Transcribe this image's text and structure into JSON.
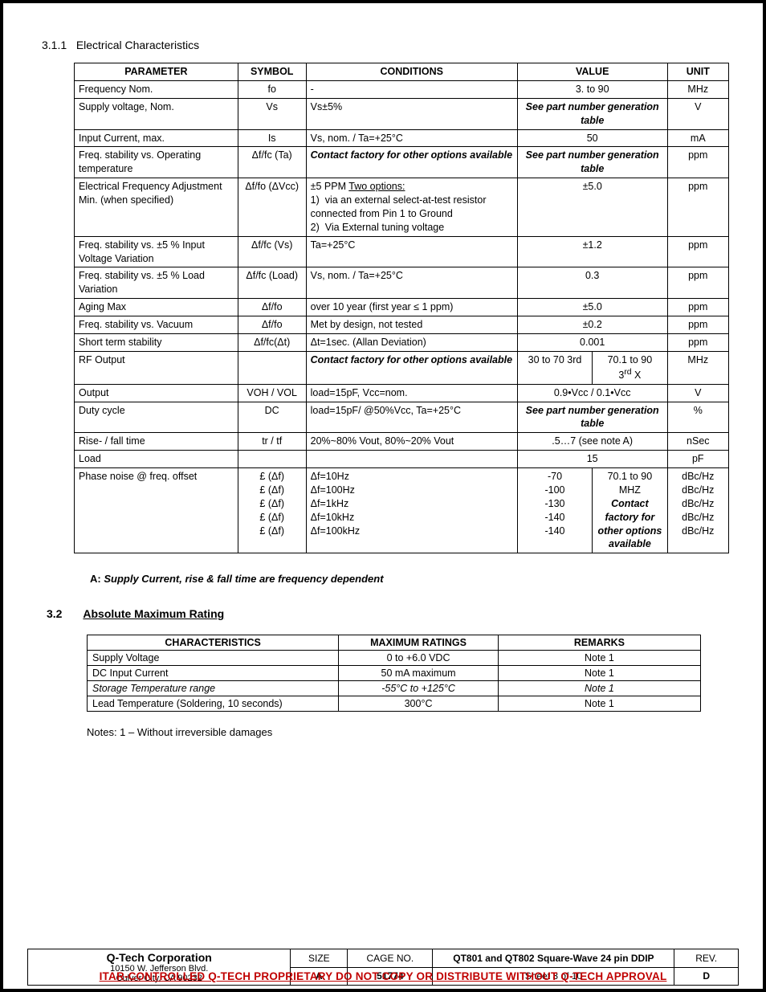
{
  "section311": {
    "num": "3.1.1",
    "title": "Electrical Characteristics"
  },
  "table1": {
    "headers": [
      "PARAMETER",
      "SYMBOL",
      "CONDITIONS",
      "VALUE",
      "UNIT"
    ],
    "col_widths": [
      "24%",
      "10%",
      "31%",
      "11%",
      "11%",
      "9%"
    ],
    "rows": [
      {
        "p": "Frequency Nom.",
        "s": "fo",
        "c": "-",
        "v": "3. to 90",
        "u": "MHz"
      },
      {
        "p": "Supply voltage, Nom.",
        "s": "Vs",
        "c": "Vs±5%",
        "v": "See part number generation table",
        "v_bi": true,
        "u": "V"
      },
      {
        "p": "Input Current, max.",
        "s": "Is",
        "c": "Vs, nom. / Ta=+25°C",
        "v": "50",
        "u": "mA"
      },
      {
        "p": "Freq. stability vs. Operating temperature",
        "s": "Δf/fc (Ta)",
        "c": "Contact factory for other options available",
        "c_bi": true,
        "v": "See part number generation table",
        "v_bi": true,
        "u": "ppm"
      },
      {
        "p": "Electrical Frequency Adjustment Min. (when specified)",
        "s": "Δf/fo (ΔVcc)",
        "c": "±5 PPM  <span class='u'>Two options:</span><br>1)&nbsp;&nbsp;via an external select-at-test resistor connected from Pin 1 to Ground<br>2)&nbsp;&nbsp;Via External tuning voltage",
        "c_html": true,
        "v": "±5.0",
        "u": "ppm"
      },
      {
        "p": "Freq. stability vs. ±5 % Input Voltage Variation",
        "s": "Δf/fc (Vs)",
        "c": "Ta=+25°C",
        "v": "±1.2",
        "u": "ppm"
      },
      {
        "p": "Freq. stability vs. ±5 % Load Variation",
        "s": "Δf/fc (Load)",
        "c": "Vs, nom. / Ta=+25°C",
        "v": "0.3",
        "u": "ppm"
      },
      {
        "p": "Aging Max",
        "s": "Δf/fo",
        "c": "over 10 year (first year ≤ 1 ppm)",
        "v": "±5.0",
        "u": "ppm"
      },
      {
        "p": "Freq. stability vs. Vacuum",
        "s": "Δf/fo",
        "c": "Met by design, not tested",
        "v": "±0.2",
        "u": "ppm"
      },
      {
        "p": "Short term stability",
        "s": "Δf/fc(Δt)",
        "c": "Δt=1sec.  (Allan Deviation)",
        "v": "0.001",
        "u": "ppm"
      },
      {
        "p": "RF Output",
        "s": "",
        "c": "Contact factory for other options available",
        "c_bi": true,
        "v2": [
          "30 to 70 3rd",
          "70.1 to 90<br>3<sup>rd</sup> X"
        ],
        "u": "MHz"
      },
      {
        "p": "Output",
        "s": "VOH / VOL",
        "c": "load=15pF,  Vcc=nom.",
        "v": "0.9•Vcc / 0.1•Vcc",
        "u": "V"
      },
      {
        "p": "Duty cycle",
        "s": "DC",
        "c": "load=15pF/ @50%Vcc, Ta=+25°C",
        "v": "See part number generation table",
        "v_bi": true,
        "u": "%"
      },
      {
        "p": "Rise- / fall time",
        "s": "tr / tf",
        "c": "20%~80% Vout, 80%~20% Vout",
        "v": ".5…7 (see note A)",
        "u": "nSec"
      },
      {
        "p": "Load",
        "s": "",
        "c": "",
        "v": "15",
        "u": "pF"
      },
      {
        "p": "Phase noise @ freq. offset",
        "s": "£ (Δf)<br>£ (Δf)<br>£ (Δf)<br>£ (Δf)<br>£ (Δf)",
        "s_html": true,
        "c": "Δf=10Hz<br>Δf=100Hz<br>Δf=1kHz<br>Δf=10kHz<br>Δf=100kHz",
        "c_html": true,
        "v2": [
          "-70<br>-100<br>-130<br>-140<br>-140",
          "70.1 to 90 MHZ<br><span class='bi'>Contact factory for other options available</span>"
        ],
        "u": "dBc/Hz<br>dBc/Hz<br>dBc/Hz<br>dBc/Hz<br>dBc/Hz",
        "u_html": true
      }
    ]
  },
  "noteA": {
    "prefix": "A:",
    "text": "Supply Current, rise & fall time are frequency dependent"
  },
  "section32": {
    "num": "3.2",
    "title": "Absolute Maximum Rating"
  },
  "table2": {
    "headers": [
      "CHARACTERISTICS",
      "MAXIMUM RATINGS",
      "REMARKS"
    ],
    "col_widths": [
      "41%",
      "26%",
      "33%"
    ],
    "rows": [
      {
        "c": "Supply Voltage",
        "m": "0  to +6.0 VDC",
        "r": "Note 1"
      },
      {
        "c": "DC Input Current",
        "m": "50 mA maximum",
        "r": "Note 1"
      },
      {
        "c": "Storage Temperature range",
        "c_i": true,
        "m": "-55°C to +125°C",
        "m_i": true,
        "r": "Note 1",
        "r_i": true
      },
      {
        "c": "Lead Temperature (Soldering, 10 seconds)",
        "m": "300°C",
        "r": "Note 1"
      }
    ]
  },
  "notes": "Notes: 1 – Without irreversible damages",
  "titleblock": {
    "corp": "Q-Tech Corporation",
    "addr1": "10150 W. Jefferson Blvd.",
    "addr2": "Culver City, CA  90232",
    "size_lbl": "SIZE",
    "size": "A",
    "cage_lbl": "CAGE NO.",
    "cage": "51774",
    "title": "QT801 and QT802 Square-Wave 24 pin DDIP",
    "sheet": "Sheet 3 of 10",
    "rev_lbl": "REV.",
    "rev": "D"
  },
  "itar": "ITAR-CONTROLLED Q-TECH PROPRIETARY DO NOT COPY OR DISTRIBUTE WITHOUT Q-TECH APPROVAL"
}
